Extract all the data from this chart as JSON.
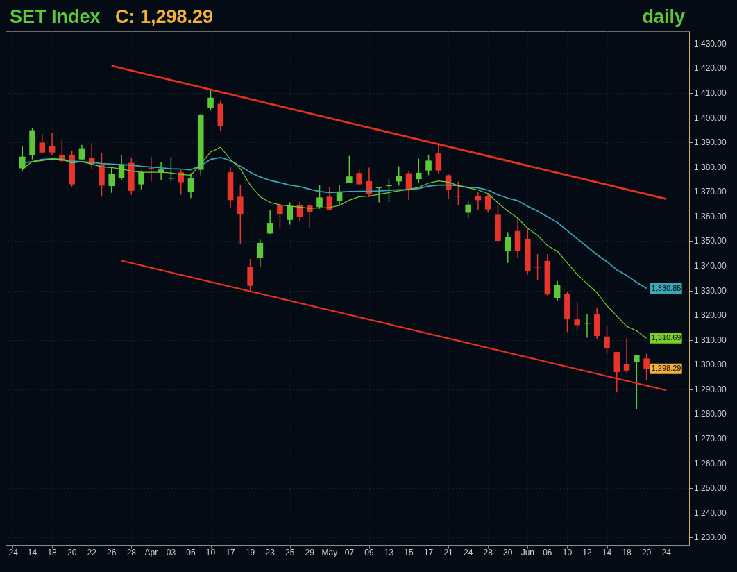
{
  "chart_data": {
    "type": "candlestick",
    "title": "SET Index",
    "annotations": [
      "C: 1,298.29",
      "daily"
    ],
    "categories": [
      "'24",
      null,
      "14",
      null,
      "18",
      null,
      "20",
      null,
      "22",
      null,
      "26",
      null,
      "28",
      null,
      "Apr",
      null,
      "03",
      null,
      "05",
      null,
      "10",
      null,
      "17",
      null,
      "19",
      null,
      "23",
      null,
      "25",
      null,
      "29",
      null,
      "May",
      null,
      "07",
      null,
      "09",
      null,
      "13",
      null,
      "15",
      null,
      "17",
      null,
      "21",
      null,
      "24",
      null,
      "28",
      null,
      "30",
      null,
      "Jun",
      null,
      "06",
      null,
      "10",
      null,
      "12",
      null,
      "14",
      null,
      "18",
      null,
      "20",
      null,
      "24"
    ],
    "ylim": [
      1227,
      1435
    ],
    "yticks": [
      {
        "value": 1230,
        "label": "1,230.00"
      },
      {
        "value": 1240,
        "label": "1,240.00"
      },
      {
        "value": 1250,
        "label": "1,250.00"
      },
      {
        "value": 1260,
        "label": "1,260.00"
      },
      {
        "value": 1270,
        "label": "1,270.00"
      },
      {
        "value": 1280,
        "label": "1,280.00"
      },
      {
        "value": 1290,
        "label": "1,290.00"
      },
      {
        "value": 1300,
        "label": "1,300.00"
      },
      {
        "value": 1310,
        "label": "1,310.00"
      },
      {
        "value": 1320,
        "label": "1,320.00"
      },
      {
        "value": 1330,
        "label": "1,330.00"
      },
      {
        "value": 1340,
        "label": "1,340.00"
      },
      {
        "value": 1350,
        "label": "1,350.00"
      },
      {
        "value": 1360,
        "label": "1,360.00"
      },
      {
        "value": 1370,
        "label": "1,370.00"
      },
      {
        "value": 1380,
        "label": "1,380.00"
      },
      {
        "value": 1390,
        "label": "1,390.00"
      },
      {
        "value": 1400,
        "label": "1,400.00"
      },
      {
        "value": 1410,
        "label": "1,410.00"
      },
      {
        "value": 1420,
        "label": "1,420.00"
      },
      {
        "value": 1430,
        "label": "1,430.00"
      }
    ],
    "grid": true,
    "series": [
      {
        "type": "line",
        "color": "#e8301f",
        "values": [
          null,
          null,
          null,
          null,
          null,
          null,
          null,
          null,
          null,
          null,
          1421.0,
          null,
          null,
          null,
          null,
          null,
          null,
          null,
          null,
          null,
          null,
          null,
          null,
          null,
          null,
          null,
          null,
          null,
          null,
          null,
          null,
          null,
          null,
          null,
          null,
          null,
          null,
          null,
          null,
          null,
          null,
          null,
          null,
          null,
          null,
          null,
          null,
          null,
          null,
          null,
          null,
          null,
          null,
          null,
          null,
          null,
          null,
          null,
          null,
          null,
          null,
          null,
          null,
          null,
          null,
          null,
          1367.1
        ]
      },
      {
        "type": "line",
        "color": "#e8301f",
        "values": [
          null,
          null,
          null,
          null,
          null,
          null,
          null,
          null,
          null,
          null,
          null,
          1342.1,
          null,
          null,
          null,
          null,
          null,
          null,
          null,
          null,
          null,
          null,
          null,
          null,
          null,
          null,
          null,
          null,
          null,
          null,
          null,
          null,
          null,
          null,
          null,
          null,
          null,
          null,
          null,
          null,
          null,
          null,
          null,
          null,
          null,
          null,
          null,
          null,
          null,
          null,
          null,
          null,
          null,
          null,
          null,
          null,
          null,
          null,
          null,
          null,
          null,
          null,
          null,
          null,
          null,
          null,
          1289.6
        ]
      },
      {
        "type": "line",
        "color": "#3aa8b8",
        "values": [
          null,
          1381.7,
          1382.2,
          1383.1,
          1383.3,
          1383.1,
          1382.4,
          1382.2,
          1381.9,
          1381.4,
          1381.2,
          1381.0,
          1380.8,
          1380.3,
          1380.0,
          1379.7,
          1379.3,
          1379.2,
          1378.9,
          1380.6,
          1383.1,
          1383.9,
          1382.6,
          1380.3,
          1377.9,
          1376.0,
          1374.6,
          1373.7,
          1372.7,
          1372.1,
          1371.0,
          1370.1,
          1369.7,
          1369.9,
          1370.1,
          1370.2,
          1370.2,
          1370.3,
          1370.6,
          1370.8,
          1370.8,
          1371.3,
          1372.3,
          1372.7,
          1372.7,
          1372.5,
          1371.8,
          1371.6,
          1370.7,
          1368.8,
          1367.4,
          1366.4,
          1364.1,
          1362.2,
          1359.9,
          1357.6,
          1354.3,
          1351.0,
          1347.8,
          1344.5,
          1341.7,
          1338.4,
          1336.1,
          1333.3,
          1330.85,
          null,
          null
        ],
        "value_labels": [
          null,
          null,
          null,
          null,
          null,
          null,
          null,
          null,
          null,
          null,
          null,
          null,
          null,
          null,
          null,
          null,
          null,
          null,
          null,
          null,
          null,
          null,
          null,
          null,
          null,
          null,
          null,
          null,
          null,
          null,
          null,
          null,
          null,
          null,
          null,
          null,
          null,
          null,
          null,
          null,
          null,
          null,
          null,
          null,
          null,
          null,
          null,
          null,
          null,
          null,
          null,
          null,
          null,
          null,
          null,
          null,
          null,
          null,
          null,
          null,
          null,
          null,
          null,
          null,
          "1,330.85",
          null,
          null
        ]
      },
      {
        "type": "line",
        "color": "#7ccf2a",
        "values": [
          null,
          1379.3,
          1382.2,
          1382.6,
          1383.3,
          1383.1,
          1381.7,
          1382.2,
          1381.2,
          1380.1,
          1379.8,
          1379.2,
          1378.4,
          1377.9,
          1377.9,
          1377.9,
          1377.6,
          1377.0,
          1376.7,
          1381.2,
          1386.1,
          1388.0,
          1383.1,
          1379.3,
          1372.7,
          1368.0,
          1365.7,
          1364.7,
          1364.2,
          1363.8,
          1363.3,
          1363.5,
          1363.6,
          1364.5,
          1366.6,
          1368.0,
          1368.3,
          1369.0,
          1369.7,
          1370.4,
          1371.0,
          1371.8,
          1373.5,
          1374.4,
          1373.9,
          1372.5,
          1371.6,
          1370.7,
          1369.3,
          1365.5,
          1362.2,
          1359.4,
          1355.2,
          1352.4,
          1348.2,
          1345.9,
          1341.2,
          1336.5,
          1332.8,
          1329.1,
          1323.9,
          1319.7,
          1315.5,
          1313.7,
          1310.69,
          null,
          null
        ],
        "value_labels": [
          null,
          null,
          null,
          null,
          null,
          null,
          null,
          null,
          null,
          null,
          null,
          null,
          null,
          null,
          null,
          null,
          null,
          null,
          null,
          null,
          null,
          null,
          null,
          null,
          null,
          null,
          null,
          null,
          null,
          null,
          null,
          null,
          null,
          null,
          null,
          null,
          null,
          null,
          null,
          null,
          null,
          null,
          null,
          null,
          null,
          null,
          null,
          null,
          null,
          null,
          null,
          null,
          null,
          null,
          null,
          null,
          null,
          null,
          null,
          null,
          null,
          null,
          null,
          null,
          "1,310.69",
          null,
          null
        ]
      },
      {
        "type": "candlestick",
        "color": "#f2b23a",
        "ohlc": [
          null,
          [
            1379.5,
            1388.3,
            1378.2,
            1384.2
          ],
          [
            1384.8,
            1395.8,
            1383.1,
            1394.9
          ],
          [
            1389.9,
            1393.3,
            1385.5,
            1385.9
          ],
          [
            1388.5,
            1393.7,
            1385.0,
            1385.9
          ],
          [
            1385.0,
            1391.4,
            1382.0,
            1382.4
          ],
          [
            1384.8,
            1386.7,
            1372.1,
            1373.0
          ],
          [
            1383.1,
            1389.0,
            1382.8,
            1387.6
          ],
          [
            1383.8,
            1389.7,
            1379.2,
            1381.2
          ],
          [
            1381.0,
            1385.8,
            1368.0,
            1372.5
          ],
          [
            1372.3,
            1379.6,
            1369.6,
            1377.2
          ],
          [
            1375.4,
            1385.0,
            1374.8,
            1380.8
          ],
          [
            1381.7,
            1383.6,
            1368.8,
            1370.4
          ],
          [
            1373.0,
            1378.6,
            1371.0,
            1377.9
          ],
          [
            1379.6,
            1384.2,
            1374.2,
            1379.2
          ],
          [
            1377.9,
            1382.0,
            1374.8,
            1379.0
          ],
          [
            1375.3,
            1384.1,
            1374.2,
            1375.7
          ],
          [
            1377.9,
            1378.9,
            1368.8,
            1373.9
          ],
          [
            1369.9,
            1377.5,
            1367.5,
            1375.4
          ],
          [
            1378.9,
            1401.5,
            1376.7,
            1401.3
          ],
          [
            1404.1,
            1411.4,
            1402.9,
            1408.1
          ],
          [
            1405.6,
            1407.0,
            1394.6,
            1396.5
          ],
          [
            1377.9,
            1380.1,
            1363.3,
            1366.6
          ],
          [
            1368.0,
            1372.9,
            1349.0,
            1360.9
          ],
          [
            1339.7,
            1342.8,
            1329.8,
            1331.9
          ],
          [
            1343.3,
            1350.6,
            1339.7,
            1349.3
          ],
          [
            1353.1,
            1362.5,
            1352.9,
            1357.4
          ],
          [
            1364.5,
            1365.2,
            1355.3,
            1360.9
          ],
          [
            1358.6,
            1365.7,
            1356.7,
            1364.2
          ],
          [
            1364.7,
            1365.9,
            1358.1,
            1359.8
          ],
          [
            1364.4,
            1364.9,
            1355.3,
            1361.9
          ],
          [
            1363.8,
            1372.7,
            1363.1,
            1367.7
          ],
          [
            1368.0,
            1371.8,
            1362.5,
            1362.8
          ],
          [
            1366.4,
            1372.7,
            1364.4,
            1369.9
          ],
          [
            1373.7,
            1384.5,
            1373.7,
            1376.2
          ],
          [
            1377.6,
            1378.9,
            1373.0,
            1373.0
          ],
          [
            1374.3,
            1379.8,
            1367.8,
            1369.2
          ],
          [
            1371.5,
            1371.9,
            1365.7,
            1371.8
          ],
          [
            1372.3,
            1375.1,
            1365.9,
            1372.6
          ],
          [
            1374.2,
            1380.3,
            1372.5,
            1376.4
          ],
          [
            1377.5,
            1378.2,
            1366.6,
            1370.7
          ],
          [
            1375.1,
            1383.4,
            1373.7,
            1377.7
          ],
          [
            1378.6,
            1385.0,
            1376.7,
            1382.6
          ],
          [
            1385.5,
            1389.5,
            1377.3,
            1378.6
          ],
          [
            1376.7,
            1377.0,
            1367.1,
            1370.8
          ],
          [
            1368.1,
            1374.1,
            1364.6,
            1368.0
          ],
          [
            1361.5,
            1366.0,
            1359.4,
            1364.8
          ],
          [
            1368.3,
            1370.0,
            1362.5,
            1366.6
          ],
          [
            1368.3,
            1369.1,
            1361.6,
            1362.9
          ],
          [
            1360.7,
            1364.4,
            1350.1,
            1350.1
          ],
          [
            1346.1,
            1353.6,
            1341.2,
            1351.8
          ],
          [
            1354.1,
            1359.4,
            1343.1,
            1345.9
          ],
          [
            1351.0,
            1354.8,
            1336.5,
            1337.8
          ],
          [
            1339.5,
            1344.8,
            1334.4,
            1339.3
          ],
          [
            1342.0,
            1344.8,
            1327.7,
            1328.4
          ],
          [
            1326.9,
            1333.9,
            1325.8,
            1332.4
          ],
          [
            1328.7,
            1329.5,
            1313.2,
            1318.5
          ],
          [
            1318.3,
            1325.3,
            1314.2,
            1316.0
          ],
          [
            1316.4,
            1320.5,
            1310.9,
            1316.5
          ],
          [
            1320.5,
            1323.2,
            1310.4,
            1311.6
          ],
          [
            1311.4,
            1315.7,
            1304.4,
            1306.7
          ],
          [
            1305.1,
            1305.1,
            1288.8,
            1297.0
          ],
          [
            1300.2,
            1310.7,
            1296.5,
            1297.6
          ],
          [
            1301.2,
            1303.9,
            1282.1,
            1303.9
          ],
          [
            1302.5,
            1304.4,
            1293.9,
            1298.29
          ],
          null,
          null
        ],
        "colors": [
          null,
          "#5cc93a",
          "#5cc93a",
          "#e8352a",
          "#e8352a",
          "#e8352a",
          "#e8352a",
          "#5cc93a",
          "#e8352a",
          "#e8352a",
          "#5cc93a",
          "#5cc93a",
          "#e8352a",
          "#5cc93a",
          "#e8352a",
          "#5cc93a",
          "#5cc93a",
          "#e8352a",
          "#5cc93a",
          "#5cc93a",
          "#5cc93a",
          "#e8352a",
          "#e8352a",
          "#e8352a",
          "#e8352a",
          "#5cc93a",
          "#5cc93a",
          "#e8352a",
          "#5cc93a",
          "#e8352a",
          "#e8352a",
          "#5cc93a",
          "#e8352a",
          "#5cc93a",
          "#5cc93a",
          "#e8352a",
          "#e8352a",
          "#5cc93a",
          "#5cc93a",
          "#5cc93a",
          "#e8352a",
          "#5cc93a",
          "#5cc93a",
          "#e8352a",
          "#e8352a",
          "#e8352a",
          "#5cc93a",
          "#e8352a",
          "#e8352a",
          "#e8352a",
          "#5cc93a",
          "#e8352a",
          "#e8352a",
          "#e8352a",
          "#e8352a",
          "#5cc93a",
          "#e8352a",
          "#e8352a",
          "#5cc93a",
          "#e8352a",
          "#e8352a",
          "#e8352a",
          "#e8352a",
          "#5cc93a",
          "#e8352a",
          null,
          null
        ],
        "value_labels": [
          null,
          null,
          null,
          null,
          null,
          null,
          null,
          null,
          null,
          null,
          null,
          null,
          null,
          null,
          null,
          null,
          null,
          null,
          null,
          null,
          null,
          null,
          null,
          null,
          null,
          null,
          null,
          null,
          null,
          null,
          null,
          null,
          null,
          null,
          null,
          null,
          null,
          null,
          null,
          null,
          null,
          null,
          null,
          null,
          null,
          null,
          null,
          null,
          null,
          null,
          null,
          null,
          null,
          null,
          null,
          null,
          null,
          null,
          null,
          null,
          null,
          null,
          null,
          null,
          "1,298.29",
          null,
          null
        ]
      }
    ]
  }
}
